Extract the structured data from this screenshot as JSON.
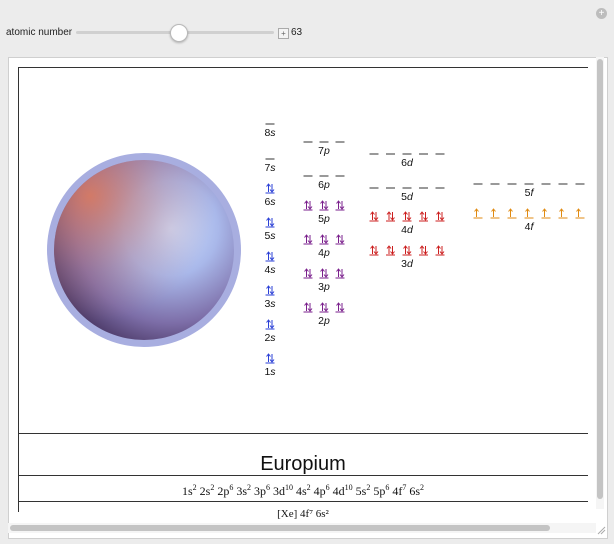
{
  "control": {
    "label": "atomic number",
    "value": "63",
    "plus": "+"
  },
  "corner_button": "+",
  "element_name": "Europium",
  "config": [
    {
      "o": "1s",
      "n": "2"
    },
    {
      "o": "2s",
      "n": "2"
    },
    {
      "o": "2p",
      "n": "6"
    },
    {
      "o": "3s",
      "n": "2"
    },
    {
      "o": "3p",
      "n": "6"
    },
    {
      "o": "3d",
      "n": "10"
    },
    {
      "o": "4s",
      "n": "2"
    },
    {
      "o": "4p",
      "n": "6"
    },
    {
      "o": "4d",
      "n": "10"
    },
    {
      "o": "5s",
      "n": "2"
    },
    {
      "o": "5p",
      "n": "6"
    },
    {
      "o": "4f",
      "n": "7"
    },
    {
      "o": "6s",
      "n": "2"
    }
  ],
  "config_cut": "[Xe] 4f⁷ 6s²",
  "colors": {
    "s": "#2a3fd6",
    "p": "#7a1f8c",
    "d": "#cc1f1f",
    "f": "#e08a10"
  },
  "orbitals": [
    {
      "label": "1s",
      "type": "s",
      "slots": 1,
      "electrons": 2
    },
    {
      "label": "2s",
      "type": "s",
      "slots": 1,
      "electrons": 2
    },
    {
      "label": "3s",
      "type": "s",
      "slots": 1,
      "electrons": 2
    },
    {
      "label": "4s",
      "type": "s",
      "slots": 1,
      "electrons": 2
    },
    {
      "label": "5s",
      "type": "s",
      "slots": 1,
      "electrons": 2
    },
    {
      "label": "6s",
      "type": "s",
      "slots": 1,
      "electrons": 2
    },
    {
      "label": "7s",
      "type": "s",
      "slots": 1,
      "electrons": 0
    },
    {
      "label": "8s",
      "type": "s",
      "slots": 1,
      "electrons": 0
    },
    {
      "label": "2p",
      "type": "p",
      "slots": 3,
      "electrons": 6
    },
    {
      "label": "3p",
      "type": "p",
      "slots": 3,
      "electrons": 6
    },
    {
      "label": "4p",
      "type": "p",
      "slots": 3,
      "electrons": 6
    },
    {
      "label": "5p",
      "type": "p",
      "slots": 3,
      "electrons": 6
    },
    {
      "label": "6p",
      "type": "p",
      "slots": 3,
      "electrons": 0
    },
    {
      "label": "7p",
      "type": "p",
      "slots": 3,
      "electrons": 0
    },
    {
      "label": "3d",
      "type": "d",
      "slots": 5,
      "electrons": 10
    },
    {
      "label": "4d",
      "type": "d",
      "slots": 5,
      "electrons": 10
    },
    {
      "label": "5d",
      "type": "d",
      "slots": 5,
      "electrons": 0
    },
    {
      "label": "6d",
      "type": "d",
      "slots": 5,
      "electrons": 0
    },
    {
      "label": "4f",
      "type": "f",
      "slots": 7,
      "electrons": 7
    },
    {
      "label": "5f",
      "type": "f",
      "slots": 7,
      "electrons": 0
    }
  ]
}
